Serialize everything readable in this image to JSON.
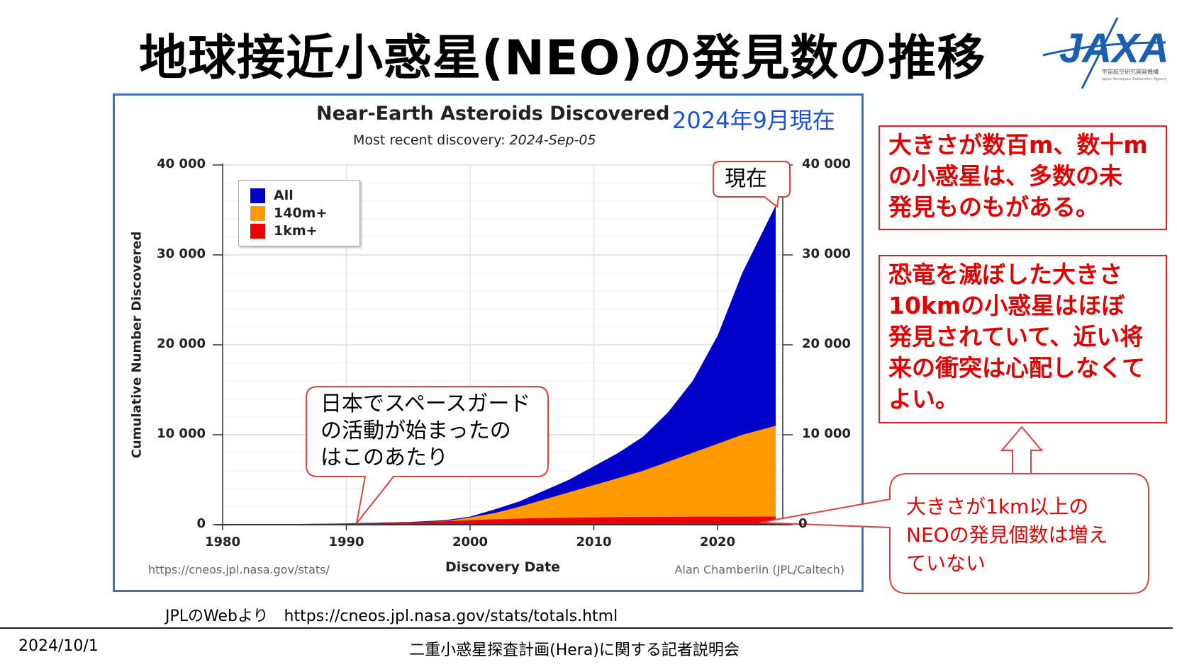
{
  "slide": {
    "title": "地球接近小惑星(NEO)の発見数の推移",
    "logo": {
      "text": "JAXA",
      "subtext": "宇宙航空研究開発機構",
      "subtext_en": "Japan Aerospace Exploration Agency",
      "color": "#1a5fb0"
    },
    "source_note": "JPLのWebより　https://cneos.jpl.nasa.gov/stats/totals.html",
    "footer_date": "2024/10/1",
    "footer_title": "二重小惑星探査計画(Hera)に関する記者説明会"
  },
  "annotations": {
    "as_of": "2024年9月現在",
    "now_label": "現在",
    "spaceguard": [
      "日本でスペースガード",
      "の活動が始まったの",
      "はこのあたり"
    ],
    "box1": [
      "大きさが数百m、数十m",
      "の小惑星は、多数の未",
      "発見ものもがある。"
    ],
    "box2": [
      "恐竜を滅ぼした大きさ",
      "10kmの小惑星はほぼ",
      "発見されていて、近い将",
      "来の衝突は心配しなくて",
      "よい。"
    ],
    "box3": [
      "大きさが1km以上の",
      "NEOの発見個数は増え",
      "ていない"
    ]
  },
  "chart_data": {
    "type": "area",
    "title": "Near-Earth Asteroids Discovered",
    "subtitle_prefix": "Most recent discovery: ",
    "subtitle_date": "2024-Sep-05",
    "xlabel": "Discovery Date",
    "ylabel": "Cumulative Number Discovered",
    "xlim": [
      1980,
      2026
    ],
    "ylim": [
      0,
      40000
    ],
    "x_ticks": [
      "1980",
      "1990",
      "2000",
      "2010",
      "2020"
    ],
    "y_ticks": [
      "0",
      "10 000",
      "20 000",
      "30 000",
      "40 000"
    ],
    "grid": true,
    "legend_position": "top-left",
    "source": "https://cneos.jpl.nasa.gov/stats/",
    "credit": "Alan Chamberlin (JPL/Caltech)",
    "x": [
      1980,
      1985,
      1990,
      1995,
      1998,
      2000,
      2002,
      2004,
      2006,
      2008,
      2010,
      2012,
      2014,
      2016,
      2018,
      2020,
      2022,
      2024.7
    ],
    "series": [
      {
        "name": "All",
        "color": "#0000c8",
        "values": [
          20,
          60,
          150,
          300,
          500,
          900,
          1700,
          2600,
          3800,
          5000,
          6500,
          8000,
          9800,
          12500,
          16000,
          21000,
          28000,
          35500
        ]
      },
      {
        "name": "140m+",
        "color": "#ff9a00",
        "values": [
          15,
          45,
          120,
          250,
          400,
          800,
          1300,
          2000,
          2800,
          3600,
          4400,
          5200,
          6000,
          7000,
          8000,
          9000,
          10000,
          11000
        ]
      },
      {
        "name": "1km+",
        "color": "#ee0000",
        "values": [
          10,
          35,
          100,
          250,
          380,
          500,
          600,
          680,
          740,
          790,
          820,
          840,
          860,
          870,
          880,
          885,
          895,
          900
        ]
      }
    ]
  }
}
